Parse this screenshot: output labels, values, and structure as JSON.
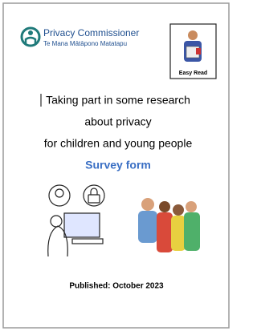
{
  "header": {
    "organisation": "Privacy Commissioner",
    "organisation_maori": "Te Mana Mātāpono Matatapu",
    "badge": "Easy Read"
  },
  "title": {
    "lines": [
      "Taking part in some research",
      "about privacy",
      "for children and young people"
    ],
    "subtitle": "Survey form"
  },
  "footer": {
    "published": "Published: October 2023"
  }
}
